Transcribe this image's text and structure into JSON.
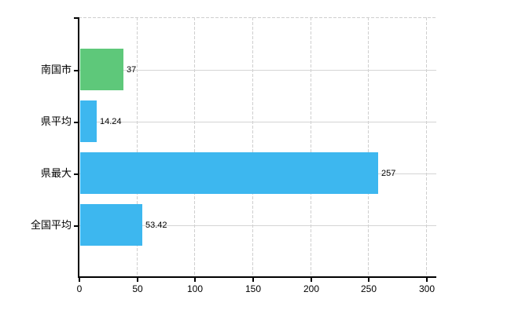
{
  "chart_data": {
    "type": "bar",
    "orientation": "horizontal",
    "title": "",
    "xlabel": "",
    "ylabel": "",
    "categories": [
      "南国市",
      "県平均",
      "県最大",
      "全国平均"
    ],
    "values": [
      37,
      14.24,
      257,
      53.42
    ],
    "value_labels": [
      "37",
      "14.24",
      "257",
      "53.42"
    ],
    "bar_colors": [
      "#5ec87a",
      "#3db7ef",
      "#3db7ef",
      "#3db7ef"
    ],
    "x_ticks": [
      0,
      50,
      100,
      150,
      200,
      250,
      300
    ],
    "x_tick_labels": [
      "0",
      "50",
      "100",
      "150",
      "200",
      "250",
      "300"
    ],
    "xlim": [
      0,
      300
    ],
    "grid": "on",
    "gridline_style": {
      "vertical": "dashed",
      "horizontal": "solid"
    },
    "legend": "none"
  },
  "colors": {
    "background": "#ffffff",
    "axis": "#000000",
    "grid": "#d4d4d4",
    "text": "#000000",
    "bar_green": "#5ec87a",
    "bar_blue": "#3db7ef"
  }
}
